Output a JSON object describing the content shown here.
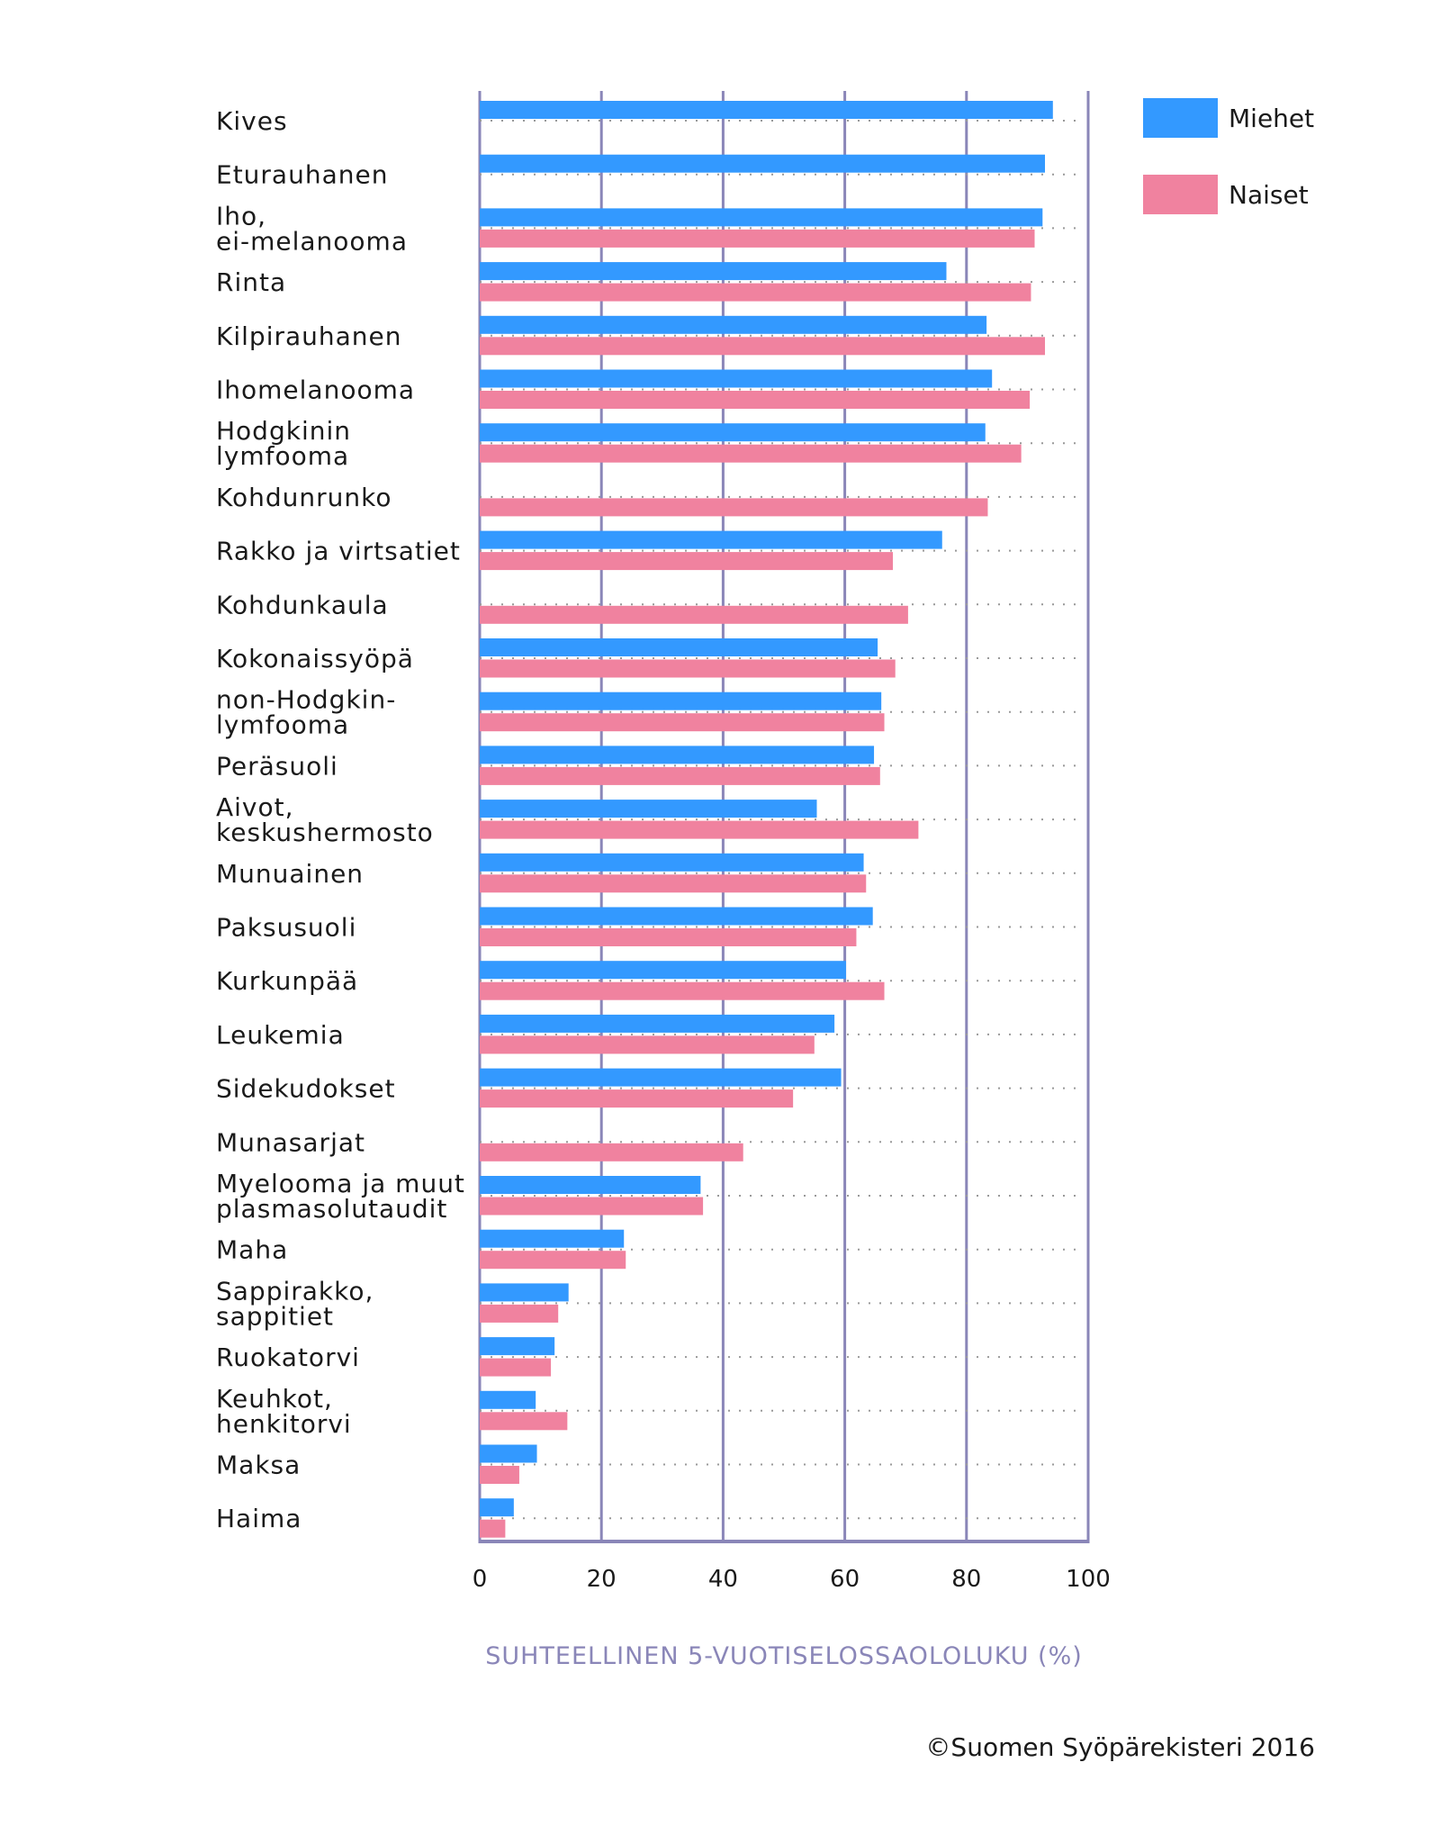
{
  "chart_data": {
    "type": "bar",
    "orientation": "horizontal",
    "title": "",
    "xlabel": "SUHTEELLINEN 5-VUOTISELOSSAOLOLUKU (%)",
    "ylabel": "",
    "xlim": [
      0,
      100
    ],
    "xticks": [
      "0",
      "20",
      "40",
      "60",
      "80",
      "100"
    ],
    "grid": true,
    "legend_position": "top-right",
    "colors": {
      "Miehet": "#3399ff",
      "Naiset": "#f0829f",
      "axis": "#8a86b8"
    },
    "categories": [
      [
        "Kives"
      ],
      [
        "Eturauhanen"
      ],
      [
        "Iho,",
        "ei-melanooma"
      ],
      [
        "Rinta"
      ],
      [
        "Kilpirauhanen"
      ],
      [
        "Ihomelanooma"
      ],
      [
        "Hodgkinin",
        "lymfooma"
      ],
      [
        "Kohdunrunko"
      ],
      [
        "Rakko ja virtsatiet"
      ],
      [
        "Kohdunkaula"
      ],
      [
        "Kokonaissyöpä"
      ],
      [
        "non-Hodgkin-",
        "lymfooma"
      ],
      [
        "Peräsuoli"
      ],
      [
        "Aivot,",
        "keskushermosto"
      ],
      [
        "Munuainen"
      ],
      [
        "Paksusuoli"
      ],
      [
        "Kurkunpää"
      ],
      [
        "Leukemia"
      ],
      [
        "Sidekudokset"
      ],
      [
        "Munasarjat"
      ],
      [
        "Myelooma ja muut",
        "plasmasolutaudit"
      ],
      [
        "Maha"
      ],
      [
        "Sappirakko,",
        "sappitiet"
      ],
      [
        "Ruokatorvi"
      ],
      [
        "Keuhkot,",
        "henkitorvi"
      ],
      [
        "Maksa"
      ],
      [
        "Haima"
      ]
    ],
    "series": [
      {
        "name": "Miehet",
        "values": [
          94.2,
          92.9,
          92.5,
          76.7,
          83.3,
          84.2,
          83.1,
          null,
          76.0,
          null,
          65.4,
          66.0,
          64.8,
          55.4,
          63.1,
          64.6,
          60.2,
          58.3,
          59.4,
          null,
          36.3,
          23.7,
          14.6,
          12.3,
          9.2,
          9.4,
          5.6
        ]
      },
      {
        "name": "Naiset",
        "values": [
          null,
          null,
          91.2,
          90.6,
          92.9,
          90.4,
          89.0,
          83.5,
          67.9,
          70.4,
          68.3,
          66.5,
          65.8,
          72.1,
          63.5,
          61.9,
          66.5,
          55.0,
          51.5,
          43.3,
          36.7,
          24.0,
          12.9,
          11.7,
          14.4,
          6.5,
          4.2
        ]
      }
    ],
    "copyright": "©Suomen Syöpärekisteri 2016"
  }
}
